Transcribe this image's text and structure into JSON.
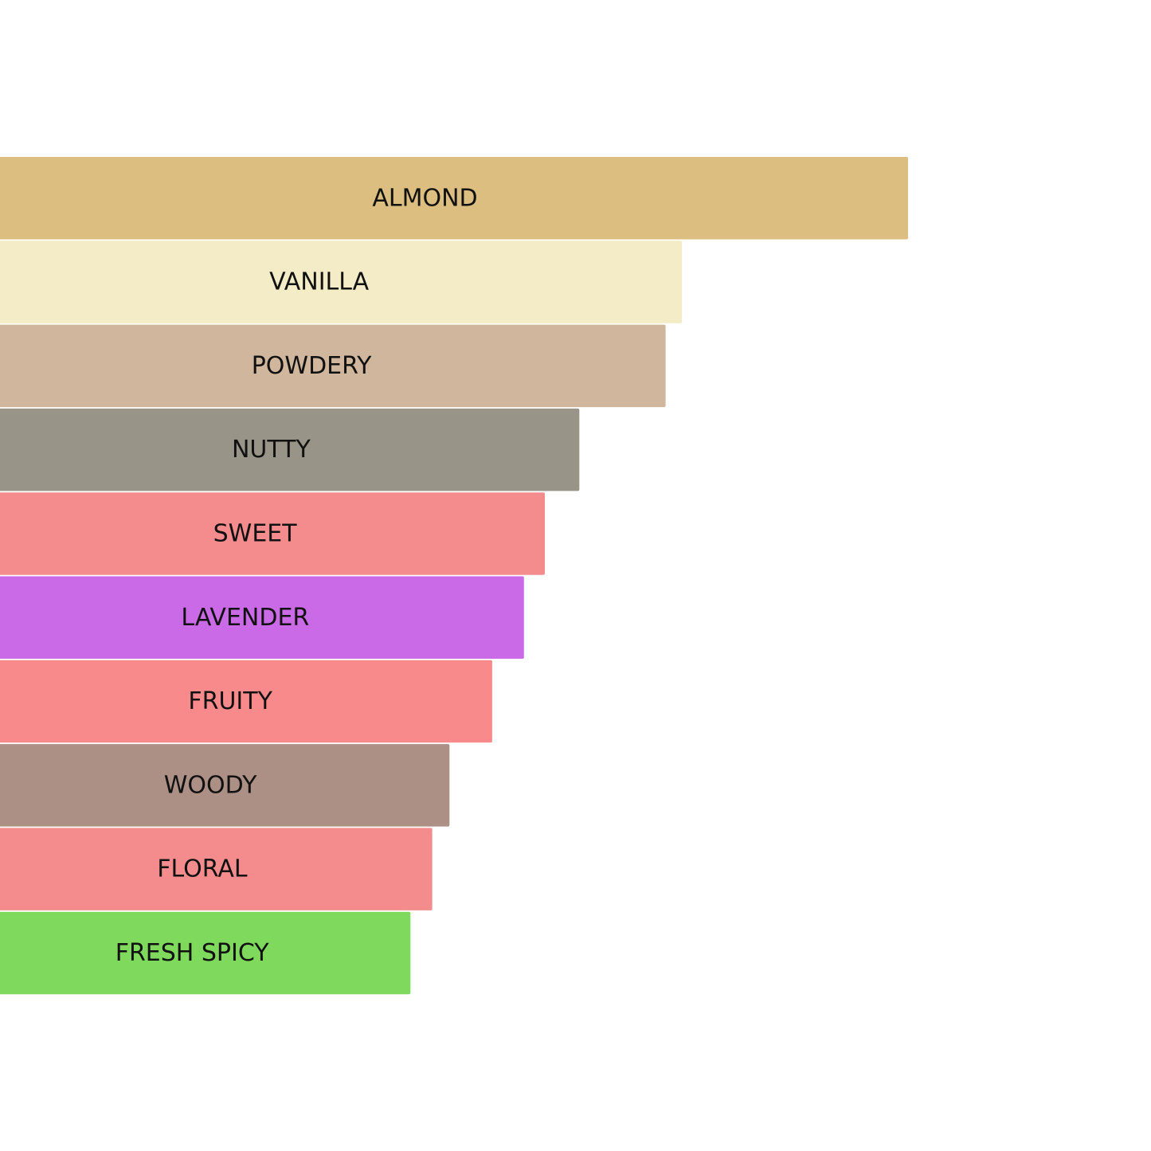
{
  "chart_data": {
    "type": "bar",
    "orientation": "horizontal",
    "title": "",
    "xlabel": "",
    "ylabel": "",
    "grid": false,
    "legend": "none",
    "xlim": [
      0,
      100
    ],
    "categories": [
      "ALMOND",
      "VANILLA",
      "POWDERY",
      "NUTTY",
      "SWEET",
      "LAVENDER",
      "FRUITY",
      "WOODY",
      "FLORAL",
      "FRESH SPICY"
    ],
    "values": [
      100,
      75.1,
      73.3,
      63.8,
      60.0,
      57.7,
      54.2,
      49.5,
      47.6,
      45.2
    ],
    "colors": [
      "#dcbf80",
      "#f4ecc7",
      "#cfb69c",
      "#989488",
      "#f48c8e",
      "#ca6ae6",
      "#f98a8b",
      "#ac8f85",
      "#f48c8e",
      "#7ed95c"
    ]
  }
}
